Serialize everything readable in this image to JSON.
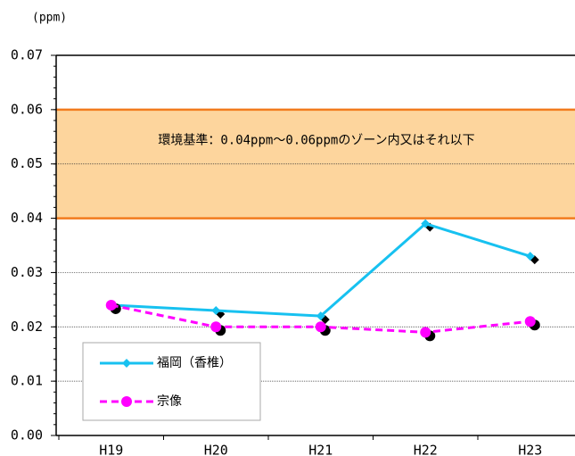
{
  "chart_data": {
    "type": "line",
    "y_label": "(ppm)",
    "categories": [
      "H19",
      "H20",
      "H21",
      "H22",
      "H23"
    ],
    "series": [
      {
        "name": "福岡（香椎）",
        "color": "#17c1f0",
        "marker": "diamond",
        "dash": false,
        "values": [
          0.024,
          0.023,
          0.022,
          0.039,
          0.033
        ]
      },
      {
        "name": "宗像",
        "color": "#ff00ff",
        "marker": "circle",
        "dash": true,
        "values": [
          0.024,
          0.02,
          0.02,
          0.019,
          0.021
        ]
      }
    ],
    "band": {
      "range": [
        0.04,
        0.06
      ],
      "label": "環境基準：0.04ppm～0.06ppmのゾーン内又はそれ以下",
      "fill": "#fdd59d",
      "edge": "#f27b1e"
    },
    "ylim": [
      0,
      0.07
    ],
    "yticks": [
      {
        "value": 0,
        "label": "0.00"
      },
      {
        "value": 0.01,
        "label": "0.01"
      },
      {
        "value": 0.02,
        "label": "0.02"
      },
      {
        "value": 0.03,
        "label": "0.03"
      },
      {
        "value": 0.04,
        "label": "0.04"
      },
      {
        "value": 0.05,
        "label": "0.05"
      },
      {
        "value": 0.06,
        "label": "0.06"
      },
      {
        "value": 0.07,
        "label": "0.07"
      }
    ],
    "grid": true
  }
}
